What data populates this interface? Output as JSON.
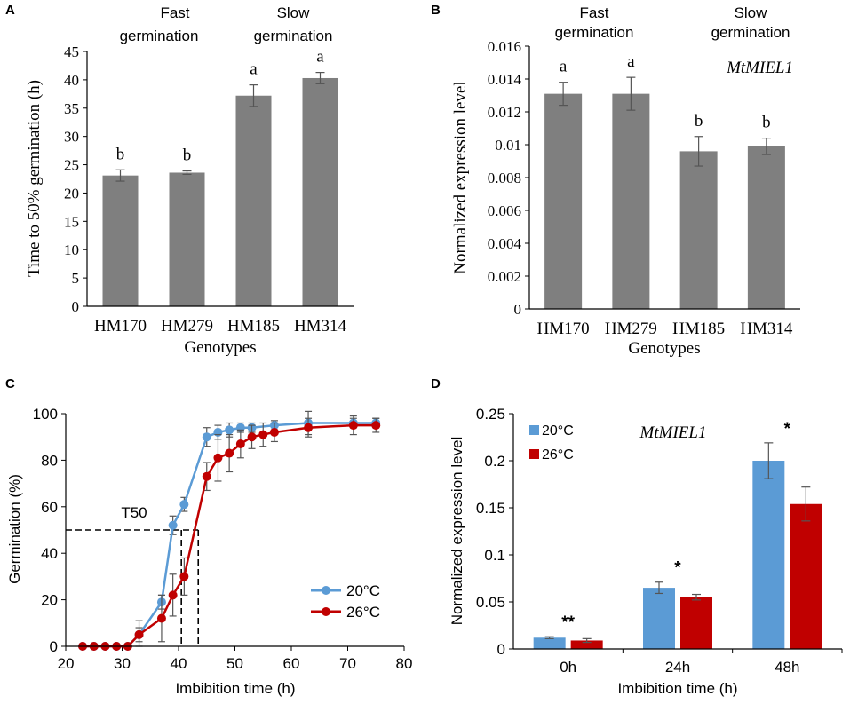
{
  "chart_data": [
    {
      "panel": "A",
      "type": "bar",
      "categories": [
        "HM170",
        "HM279",
        "HM185",
        "HM314"
      ],
      "values": [
        23.1,
        23.6,
        37.2,
        40.3
      ],
      "errors": [
        1.0,
        0.3,
        1.9,
        1.0
      ],
      "letters": [
        "b",
        "b",
        "a",
        "a"
      ],
      "ylabel": "Time to 50% germination (h)",
      "xlabel": "Genotypes",
      "ylim": [
        0,
        45
      ],
      "ytick_step": 5,
      "ytick_labels": [
        "0",
        "5",
        "10",
        "15",
        "20",
        "25",
        "30",
        "35",
        "40",
        "45"
      ],
      "group_labels": [
        {
          "line1": "Fast",
          "line2": "germination"
        },
        {
          "line1": "Slow",
          "line2": "germination"
        }
      ],
      "bar_color": "#7f7f7f"
    },
    {
      "panel": "B",
      "type": "bar",
      "categories": [
        "HM170",
        "HM279",
        "HM185",
        "HM314"
      ],
      "values": [
        0.0131,
        0.0131,
        0.0096,
        0.0099
      ],
      "errors": [
        0.0007,
        0.001,
        0.0009,
        0.0005
      ],
      "letters": [
        "a",
        "a",
        "b",
        "b"
      ],
      "ylabel": "Normalized expression level",
      "xlabel": "Genotypes",
      "gene": "MtMIEL1",
      "ylim": [
        0,
        0.016
      ],
      "ytick_step": 0.002,
      "ytick_labels": [
        "0",
        "0.002",
        "0.004",
        "0.006",
        "0.008",
        "0.01",
        "0.012",
        "0.014",
        "0.016"
      ],
      "group_labels": [
        {
          "line1": "Fast",
          "line2": "germination"
        },
        {
          "line1": "Slow",
          "line2": "germination"
        }
      ],
      "bar_color": "#7f7f7f"
    },
    {
      "panel": "C",
      "type": "line",
      "xlabel": "Imbibition time (h)",
      "ylabel": "Germination (%)",
      "xlim": [
        20,
        80
      ],
      "ylim": [
        0,
        100
      ],
      "xtick_labels": [
        "20",
        "30",
        "40",
        "50",
        "60",
        "70",
        "80"
      ],
      "ytick_labels": [
        "0",
        "20",
        "40",
        "60",
        "80",
        "100"
      ],
      "annotation": "T50",
      "t50_y": 50,
      "t50_x": [
        40.5,
        43.5
      ],
      "series": [
        {
          "name": "20°C",
          "color": "#5b9bd5",
          "x": [
            23,
            25,
            27,
            29,
            31,
            33,
            37,
            39,
            41,
            45,
            47,
            49,
            51,
            53,
            57,
            63,
            71,
            75
          ],
          "y": [
            0,
            0,
            0,
            0,
            0,
            5,
            19,
            52,
            61,
            90,
            92,
            93,
            94,
            94,
            95,
            96,
            96,
            96
          ],
          "err": [
            0,
            0,
            0,
            0,
            0,
            3,
            3,
            4,
            3,
            4,
            3,
            3,
            2,
            2,
            2,
            5,
            2,
            2
          ]
        },
        {
          "name": "26°C",
          "color": "#c00000",
          "x": [
            23,
            25,
            27,
            29,
            31,
            33,
            37,
            39,
            41,
            45,
            47,
            49,
            51,
            53,
            55,
            57,
            63,
            71,
            75
          ],
          "y": [
            0,
            0,
            0,
            0,
            0,
            5,
            12,
            22,
            30,
            73,
            81,
            83,
            87,
            90,
            91,
            92,
            94,
            95,
            95
          ],
          "err": [
            0,
            0,
            0,
            0,
            0,
            6,
            10,
            9,
            8,
            6,
            10,
            8,
            6,
            5,
            5,
            4,
            4,
            4,
            3
          ]
        }
      ]
    },
    {
      "panel": "D",
      "type": "bar",
      "categories": [
        "0h",
        "24h",
        "48h"
      ],
      "series": [
        {
          "name": "20°C",
          "color": "#5b9bd5",
          "values": [
            0.012,
            0.065,
            0.2
          ],
          "errors": [
            0.001,
            0.006,
            0.019
          ]
        },
        {
          "name": "26°C",
          "color": "#c00000",
          "values": [
            0.009,
            0.055,
            0.154
          ],
          "errors": [
            0.002,
            0.003,
            0.018
          ]
        }
      ],
      "significance": [
        "**",
        "*",
        "*"
      ],
      "ylabel": "Normalized expression level",
      "xlabel": "Imbibition time (h)",
      "gene": "MtMIEL1",
      "ylim": [
        0,
        0.25
      ],
      "ytick_labels": [
        "0",
        "0.05",
        "0.1",
        "0.15",
        "0.2",
        "0.25"
      ]
    }
  ]
}
